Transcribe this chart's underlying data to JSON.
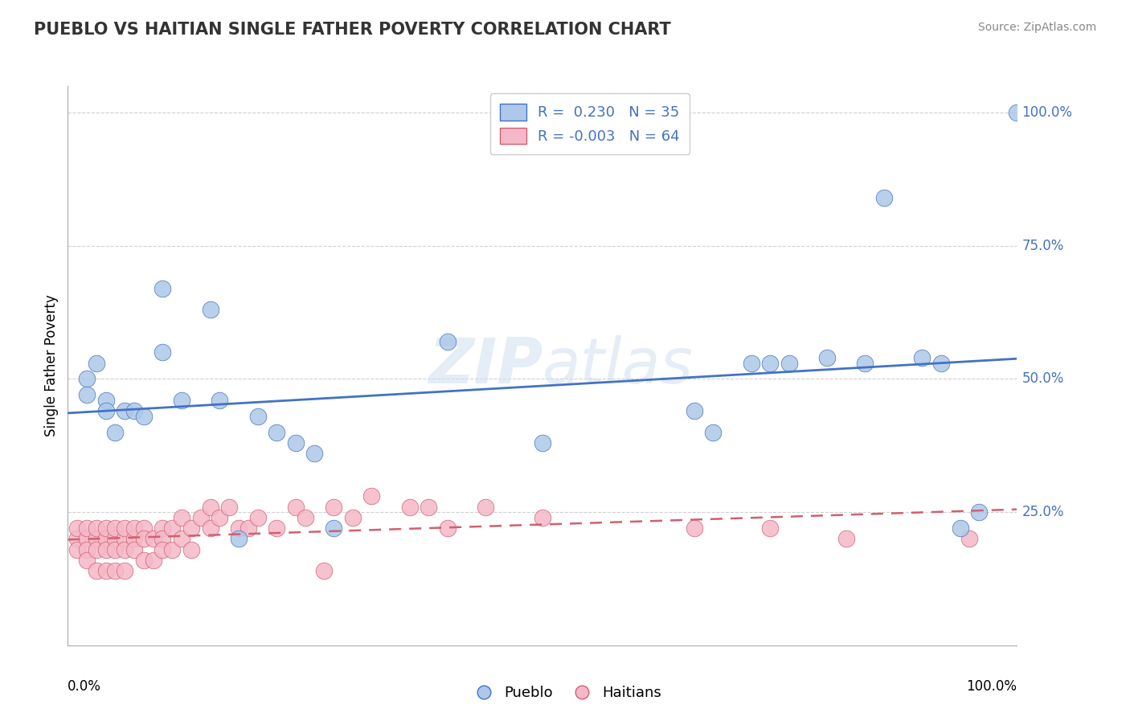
{
  "title": "PUEBLO VS HAITIAN SINGLE FATHER POVERTY CORRELATION CHART",
  "source": "Source: ZipAtlas.com",
  "ylabel": "Single Father Poverty",
  "pueblo_R": 0.23,
  "pueblo_N": 35,
  "haitian_R": -0.003,
  "haitian_N": 64,
  "pueblo_color": "#adc8e8",
  "haitian_color": "#f5b8c8",
  "pueblo_line_color": "#4472c4",
  "haitian_line_color": "#d06070",
  "right_tick_color": "#4472c4",
  "grid_color": "#d0d0d0",
  "watermark": "ZIPatlas",
  "xlim": [
    0.0,
    1.0
  ],
  "ylim": [
    0.0,
    1.05
  ],
  "yticks": [
    0.25,
    0.5,
    0.75,
    1.0
  ],
  "ytick_labels": [
    "25.0%",
    "50.0%",
    "75.0%",
    "100.0%"
  ],
  "pueblo_points_x": [
    0.02,
    0.02,
    0.03,
    0.04,
    0.04,
    0.05,
    0.06,
    0.07,
    0.08,
    0.1,
    0.1,
    0.12,
    0.15,
    0.16,
    0.18,
    0.2,
    0.22,
    0.24,
    0.26,
    0.28,
    0.4,
    0.5,
    0.66,
    0.68,
    0.72,
    0.74,
    0.76,
    0.8,
    0.84,
    0.86,
    0.9,
    0.92,
    0.94,
    0.96,
    1.0
  ],
  "pueblo_points_y": [
    0.5,
    0.47,
    0.53,
    0.46,
    0.44,
    0.4,
    0.44,
    0.44,
    0.43,
    0.67,
    0.55,
    0.46,
    0.63,
    0.46,
    0.2,
    0.43,
    0.4,
    0.38,
    0.36,
    0.22,
    0.57,
    0.38,
    0.44,
    0.4,
    0.53,
    0.53,
    0.53,
    0.54,
    0.53,
    0.84,
    0.54,
    0.53,
    0.22,
    0.25,
    1.0
  ],
  "haitian_points_x": [
    0.01,
    0.01,
    0.01,
    0.02,
    0.02,
    0.02,
    0.02,
    0.03,
    0.03,
    0.03,
    0.03,
    0.04,
    0.04,
    0.04,
    0.04,
    0.05,
    0.05,
    0.05,
    0.05,
    0.06,
    0.06,
    0.06,
    0.06,
    0.07,
    0.07,
    0.07,
    0.08,
    0.08,
    0.08,
    0.09,
    0.09,
    0.1,
    0.1,
    0.1,
    0.11,
    0.11,
    0.12,
    0.12,
    0.13,
    0.13,
    0.14,
    0.15,
    0.15,
    0.16,
    0.17,
    0.18,
    0.19,
    0.2,
    0.22,
    0.24,
    0.25,
    0.27,
    0.28,
    0.3,
    0.32,
    0.36,
    0.38,
    0.4,
    0.44,
    0.5,
    0.66,
    0.74,
    0.82,
    0.95
  ],
  "haitian_points_y": [
    0.2,
    0.18,
    0.22,
    0.2,
    0.22,
    0.18,
    0.16,
    0.2,
    0.22,
    0.18,
    0.14,
    0.2,
    0.22,
    0.18,
    0.14,
    0.2,
    0.22,
    0.18,
    0.14,
    0.2,
    0.22,
    0.18,
    0.14,
    0.2,
    0.22,
    0.18,
    0.22,
    0.2,
    0.16,
    0.2,
    0.16,
    0.22,
    0.2,
    0.18,
    0.22,
    0.18,
    0.24,
    0.2,
    0.22,
    0.18,
    0.24,
    0.26,
    0.22,
    0.24,
    0.26,
    0.22,
    0.22,
    0.24,
    0.22,
    0.26,
    0.24,
    0.14,
    0.26,
    0.24,
    0.28,
    0.26,
    0.26,
    0.22,
    0.26,
    0.24,
    0.22,
    0.22,
    0.2,
    0.2
  ]
}
